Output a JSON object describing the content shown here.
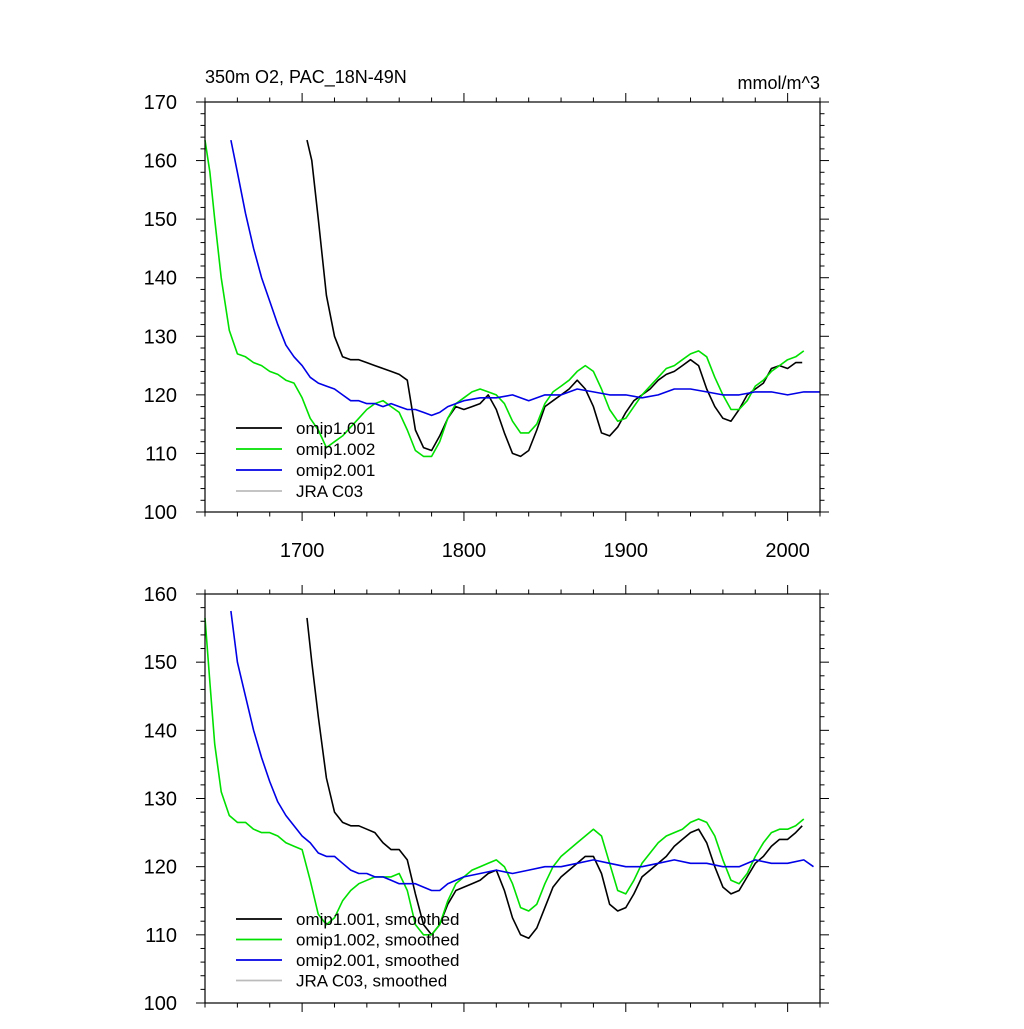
{
  "chart_data": [
    {
      "type": "line",
      "title": "350m O2, PAC_18N-49N",
      "units": "mmol/m^3",
      "xlim": [
        1640,
        2020
      ],
      "ylim": [
        100,
        170
      ],
      "xticks": [
        1700,
        1800,
        1900,
        2000
      ],
      "yticks": [
        100,
        110,
        120,
        130,
        140,
        150,
        160,
        170
      ],
      "legend_position": "bottom-left",
      "series": [
        {
          "name": "omip1.001",
          "color": "#000000",
          "x": [
            1703,
            1706,
            1710,
            1715,
            1720,
            1725,
            1730,
            1735,
            1740,
            1745,
            1750,
            1755,
            1760,
            1765,
            1770,
            1775,
            1780,
            1785,
            1790,
            1795,
            1800,
            1805,
            1810,
            1815,
            1820,
            1825,
            1830,
            1835,
            1840,
            1845,
            1850,
            1855,
            1860,
            1865,
            1870,
            1875,
            1880,
            1885,
            1890,
            1895,
            1900,
            1905,
            1910,
            1915,
            1920,
            1925,
            1930,
            1935,
            1940,
            1945,
            1950,
            1955,
            1960,
            1965,
            1970,
            1975,
            1980,
            1985,
            1990,
            1995,
            2000,
            2005,
            2009
          ],
          "y": [
            163.5,
            160,
            150,
            137,
            130,
            126.5,
            126,
            126,
            125.5,
            125,
            124.5,
            124,
            123.5,
            122.5,
            114,
            111,
            110.5,
            113,
            116,
            118,
            117.5,
            118,
            118.5,
            120,
            117.5,
            113.5,
            110,
            109.5,
            110.5,
            114,
            118,
            119,
            120,
            121,
            122.5,
            121,
            118,
            113.5,
            113,
            114.5,
            117,
            119,
            120,
            121,
            122.5,
            123.5,
            124,
            125,
            126,
            125,
            121,
            118,
            116,
            115.5,
            117.5,
            120,
            121,
            122,
            124.5,
            125,
            124.5,
            125.5,
            125.5
          ]
        },
        {
          "name": "omip1.002",
          "color": "#00e000",
          "x": [
            1640,
            1643,
            1646,
            1650,
            1655,
            1660,
            1665,
            1670,
            1675,
            1680,
            1685,
            1690,
            1695,
            1700,
            1705,
            1710,
            1715,
            1720,
            1725,
            1730,
            1735,
            1740,
            1745,
            1750,
            1755,
            1760,
            1765,
            1770,
            1775,
            1780,
            1785,
            1790,
            1795,
            1800,
            1805,
            1810,
            1815,
            1820,
            1825,
            1830,
            1835,
            1840,
            1845,
            1850,
            1855,
            1860,
            1865,
            1870,
            1875,
            1880,
            1885,
            1890,
            1895,
            1900,
            1905,
            1910,
            1915,
            1920,
            1925,
            1930,
            1935,
            1940,
            1945,
            1950,
            1955,
            1960,
            1965,
            1970,
            1975,
            1980,
            1985,
            1990,
            1995,
            2000,
            2005,
            2010
          ],
          "y": [
            163.5,
            158,
            150,
            140,
            131,
            127,
            126.5,
            125.5,
            125,
            124,
            123.5,
            122.5,
            122,
            119.5,
            116,
            114,
            111,
            112,
            113,
            114.5,
            116,
            117.5,
            118.5,
            119,
            118,
            117,
            114,
            110.5,
            109.5,
            109.5,
            112,
            116,
            118.5,
            119.5,
            120.5,
            121,
            120.5,
            120,
            118.5,
            115.5,
            113.5,
            113.5,
            115,
            118.5,
            120.5,
            121.5,
            122.5,
            124,
            125,
            124,
            121,
            117.5,
            115.5,
            116,
            118,
            120,
            121.5,
            123,
            124.5,
            125,
            126,
            127,
            127.5,
            126.5,
            123,
            120,
            117.5,
            117.5,
            119,
            121.5,
            122.5,
            124,
            125,
            126,
            126.5,
            127.5
          ]
        },
        {
          "name": "omip2.001",
          "color": "#0000e6",
          "x": [
            1656,
            1660,
            1665,
            1670,
            1675,
            1680,
            1685,
            1690,
            1695,
            1700,
            1705,
            1710,
            1715,
            1720,
            1725,
            1730,
            1735,
            1740,
            1745,
            1750,
            1755,
            1760,
            1765,
            1770,
            1775,
            1780,
            1785,
            1790,
            1795,
            1800,
            1810,
            1820,
            1830,
            1840,
            1850,
            1860,
            1870,
            1880,
            1890,
            1900,
            1910,
            1920,
            1930,
            1940,
            1950,
            1960,
            1970,
            1980,
            1990,
            2000,
            2010,
            2020
          ],
          "y": [
            163.5,
            158,
            151,
            145,
            140,
            136,
            132,
            128.5,
            126.5,
            125,
            123,
            122,
            121.5,
            121,
            120,
            119,
            119,
            118.5,
            118.5,
            118,
            118.5,
            118,
            117.5,
            117.5,
            117,
            116.5,
            117,
            118,
            118.5,
            119,
            119.5,
            119.5,
            120,
            119,
            120,
            120,
            121,
            120.5,
            120,
            120,
            119.5,
            120,
            121,
            121,
            120.5,
            120,
            120,
            120.5,
            120.5,
            120,
            120.5,
            120.5
          ]
        },
        {
          "name": "JRA C03",
          "color": "#bbbbbb",
          "x": [],
          "y": []
        }
      ]
    },
    {
      "type": "line",
      "xlim": [
        1640,
        2020
      ],
      "ylim": [
        100,
        160
      ],
      "xticks": [
        1700,
        1800,
        1900,
        2000
      ],
      "yticks": [
        100,
        110,
        120,
        130,
        140,
        150,
        160
      ],
      "legend_position": "bottom-left",
      "series": [
        {
          "name": "omip1.001, smoothed",
          "color": "#000000",
          "x": [
            1703,
            1706,
            1710,
            1715,
            1720,
            1725,
            1730,
            1735,
            1740,
            1745,
            1750,
            1755,
            1760,
            1765,
            1770,
            1775,
            1780,
            1785,
            1790,
            1795,
            1800,
            1805,
            1810,
            1815,
            1820,
            1825,
            1830,
            1835,
            1840,
            1845,
            1850,
            1855,
            1860,
            1865,
            1870,
            1875,
            1880,
            1885,
            1890,
            1895,
            1900,
            1905,
            1910,
            1915,
            1920,
            1925,
            1930,
            1935,
            1940,
            1945,
            1950,
            1955,
            1960,
            1965,
            1970,
            1975,
            1980,
            1985,
            1990,
            1995,
            2000,
            2005,
            2009
          ],
          "y": [
            156.5,
            150,
            142,
            133,
            128,
            126.5,
            126,
            126,
            125.5,
            125,
            123.5,
            122.5,
            122.5,
            121,
            116,
            111.5,
            110,
            111.5,
            114.5,
            116.5,
            117,
            117.5,
            118,
            119,
            119.5,
            116.5,
            112.5,
            110,
            109.5,
            111,
            114,
            117,
            118.5,
            119.5,
            120.5,
            121.5,
            121.5,
            119,
            114.5,
            113.5,
            114,
            116,
            118.5,
            119.5,
            120.5,
            121.5,
            123,
            124,
            125,
            125.5,
            123.5,
            120,
            117,
            116,
            116.5,
            118.5,
            120.5,
            121.5,
            123,
            124,
            124,
            125,
            126
          ]
        },
        {
          "name": "omip1.002, smoothed",
          "color": "#00e000",
          "x": [
            1640,
            1643,
            1646,
            1650,
            1655,
            1660,
            1665,
            1670,
            1675,
            1680,
            1685,
            1690,
            1695,
            1700,
            1705,
            1710,
            1715,
            1720,
            1725,
            1730,
            1735,
            1740,
            1745,
            1750,
            1755,
            1760,
            1765,
            1770,
            1775,
            1780,
            1785,
            1790,
            1795,
            1800,
            1805,
            1810,
            1815,
            1820,
            1825,
            1830,
            1835,
            1840,
            1845,
            1850,
            1855,
            1860,
            1865,
            1870,
            1875,
            1880,
            1885,
            1890,
            1895,
            1900,
            1905,
            1910,
            1915,
            1920,
            1925,
            1930,
            1935,
            1940,
            1945,
            1950,
            1955,
            1960,
            1965,
            1970,
            1975,
            1980,
            1985,
            1990,
            1995,
            2000,
            2005,
            2010
          ],
          "y": [
            156.5,
            147,
            138,
            131,
            127.5,
            126.5,
            126.5,
            125.5,
            125,
            125,
            124.5,
            123.5,
            123,
            122.5,
            118,
            113,
            111.5,
            112.5,
            115,
            116.5,
            117.5,
            118,
            118.5,
            118.5,
            118.5,
            119,
            116.5,
            111.5,
            110,
            110,
            111.5,
            115,
            117.5,
            118.5,
            119.5,
            120,
            120.5,
            121,
            120,
            117.5,
            114,
            113.5,
            114.5,
            117.5,
            120,
            121.5,
            122.5,
            123.5,
            124.5,
            125.5,
            124.5,
            120.5,
            116.5,
            116,
            118,
            120.5,
            122,
            123.5,
            124.5,
            125,
            125.5,
            126.5,
            127,
            126.5,
            124.5,
            121,
            118,
            117.5,
            119,
            121.5,
            123.5,
            125,
            125.5,
            125.5,
            126,
            127
          ]
        },
        {
          "name": "omip2.001, smoothed",
          "color": "#0000e6",
          "x": [
            1656,
            1660,
            1665,
            1670,
            1675,
            1680,
            1685,
            1690,
            1695,
            1700,
            1705,
            1710,
            1715,
            1720,
            1725,
            1730,
            1735,
            1740,
            1745,
            1750,
            1755,
            1760,
            1765,
            1770,
            1775,
            1780,
            1785,
            1790,
            1795,
            1800,
            1810,
            1820,
            1830,
            1840,
            1850,
            1860,
            1870,
            1880,
            1890,
            1900,
            1910,
            1920,
            1930,
            1940,
            1950,
            1960,
            1970,
            1980,
            1990,
            2000,
            2010,
            2016
          ],
          "y": [
            157.5,
            150,
            145,
            140,
            136,
            132.5,
            129.5,
            127.5,
            126,
            124.5,
            123.5,
            122,
            121.5,
            121.5,
            120.5,
            119.5,
            119,
            119,
            118.5,
            118.5,
            118,
            117.5,
            117.5,
            117.5,
            117,
            116.5,
            116.5,
            117.5,
            118,
            118.5,
            119,
            119.5,
            119,
            119.5,
            120,
            120,
            120.5,
            121,
            120.5,
            120,
            120,
            120.5,
            121,
            120.5,
            120.5,
            120,
            120,
            121,
            120.5,
            120.5,
            121,
            120
          ]
        },
        {
          "name": "JRA C03, smoothed",
          "color": "#bbbbbb",
          "x": [],
          "y": []
        }
      ]
    }
  ]
}
